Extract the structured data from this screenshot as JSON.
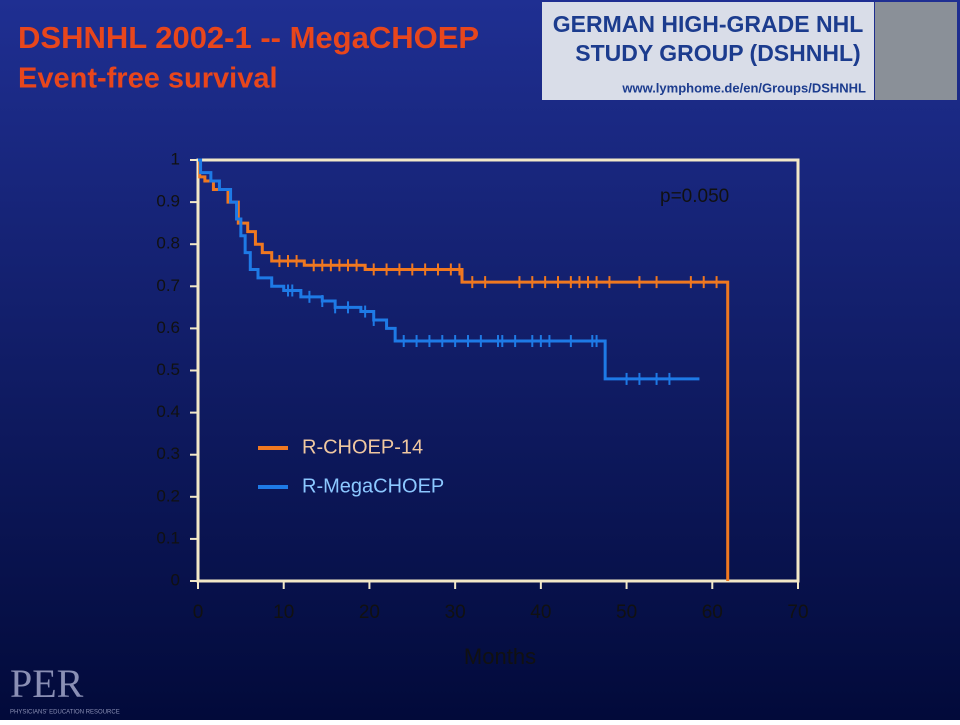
{
  "chart_data": {
    "type": "step",
    "title": "DSHNHL 2002-1 -- MegaCHOEP",
    "subtitle": "Event-free survival",
    "xlabel": "Months",
    "annotation": "p=0.050",
    "xlim": [
      0,
      70
    ],
    "xticks": [
      0,
      10,
      20,
      30,
      40,
      50,
      60,
      70
    ],
    "ylim": [
      0,
      1
    ],
    "yticks": [
      0,
      0.1,
      0.2,
      0.3,
      0.4,
      0.5,
      0.6,
      0.7,
      0.8,
      0.9,
      1
    ],
    "series": [
      {
        "name": "R-CHOEP-14",
        "color": "#f07820",
        "x": [
          0,
          0.2,
          0.8,
          1.8,
          3.5,
          4.7,
          5.8,
          6.7,
          7.5,
          8.6,
          12.4,
          19.5,
          30.8,
          61.8
        ],
        "values": [
          1,
          0.96,
          0.95,
          0.93,
          0.9,
          0.85,
          0.83,
          0.8,
          0.78,
          0.76,
          0.75,
          0.74,
          0.71,
          0
        ],
        "censored": [
          9.5,
          10.5,
          11.5,
          13.5,
          14.5,
          15.5,
          16.5,
          17.5,
          18.5,
          20.5,
          22,
          23.5,
          25,
          26.5,
          28,
          29.5,
          30.5,
          32,
          33.5,
          37.5,
          39,
          40.5,
          42,
          43.5,
          44.5,
          45.5,
          46.5,
          48,
          51.5,
          53.5,
          57.5,
          59,
          60.5
        ]
      },
      {
        "name": "R-MegaCHOEP",
        "color": "#1e7ae6",
        "x": [
          0,
          0.3,
          1.5,
          2.5,
          3.8,
          4.5,
          5,
          5.5,
          6.1,
          7,
          8.6,
          10,
          12,
          14.5,
          16,
          19,
          20.5,
          22,
          23,
          47.5,
          58.5
        ],
        "values": [
          1,
          0.97,
          0.95,
          0.93,
          0.9,
          0.86,
          0.82,
          0.78,
          0.74,
          0.72,
          0.7,
          0.69,
          0.675,
          0.665,
          0.65,
          0.64,
          0.62,
          0.6,
          0.57,
          0.48,
          0.48
        ],
        "censored": [
          10.5,
          11,
          13,
          14.5,
          16,
          17.5,
          19.5,
          20.5,
          24,
          25.5,
          27,
          28.5,
          30,
          31.5,
          33,
          35,
          35.5,
          37,
          39,
          40,
          41,
          43.5,
          46,
          46.5,
          50,
          51.5,
          53.5,
          55
        ]
      }
    ]
  },
  "logo": {
    "line1": "GERMAN HIGH-GRADE NHL",
    "line2": "STUDY GROUP (DSHNHL)",
    "url": "www.lymphome.de/en/Groups/DSHNHL"
  },
  "footer": {
    "brand": "PER",
    "tagline": "PHYSICIANS' EDUCATION RESOURCE"
  }
}
